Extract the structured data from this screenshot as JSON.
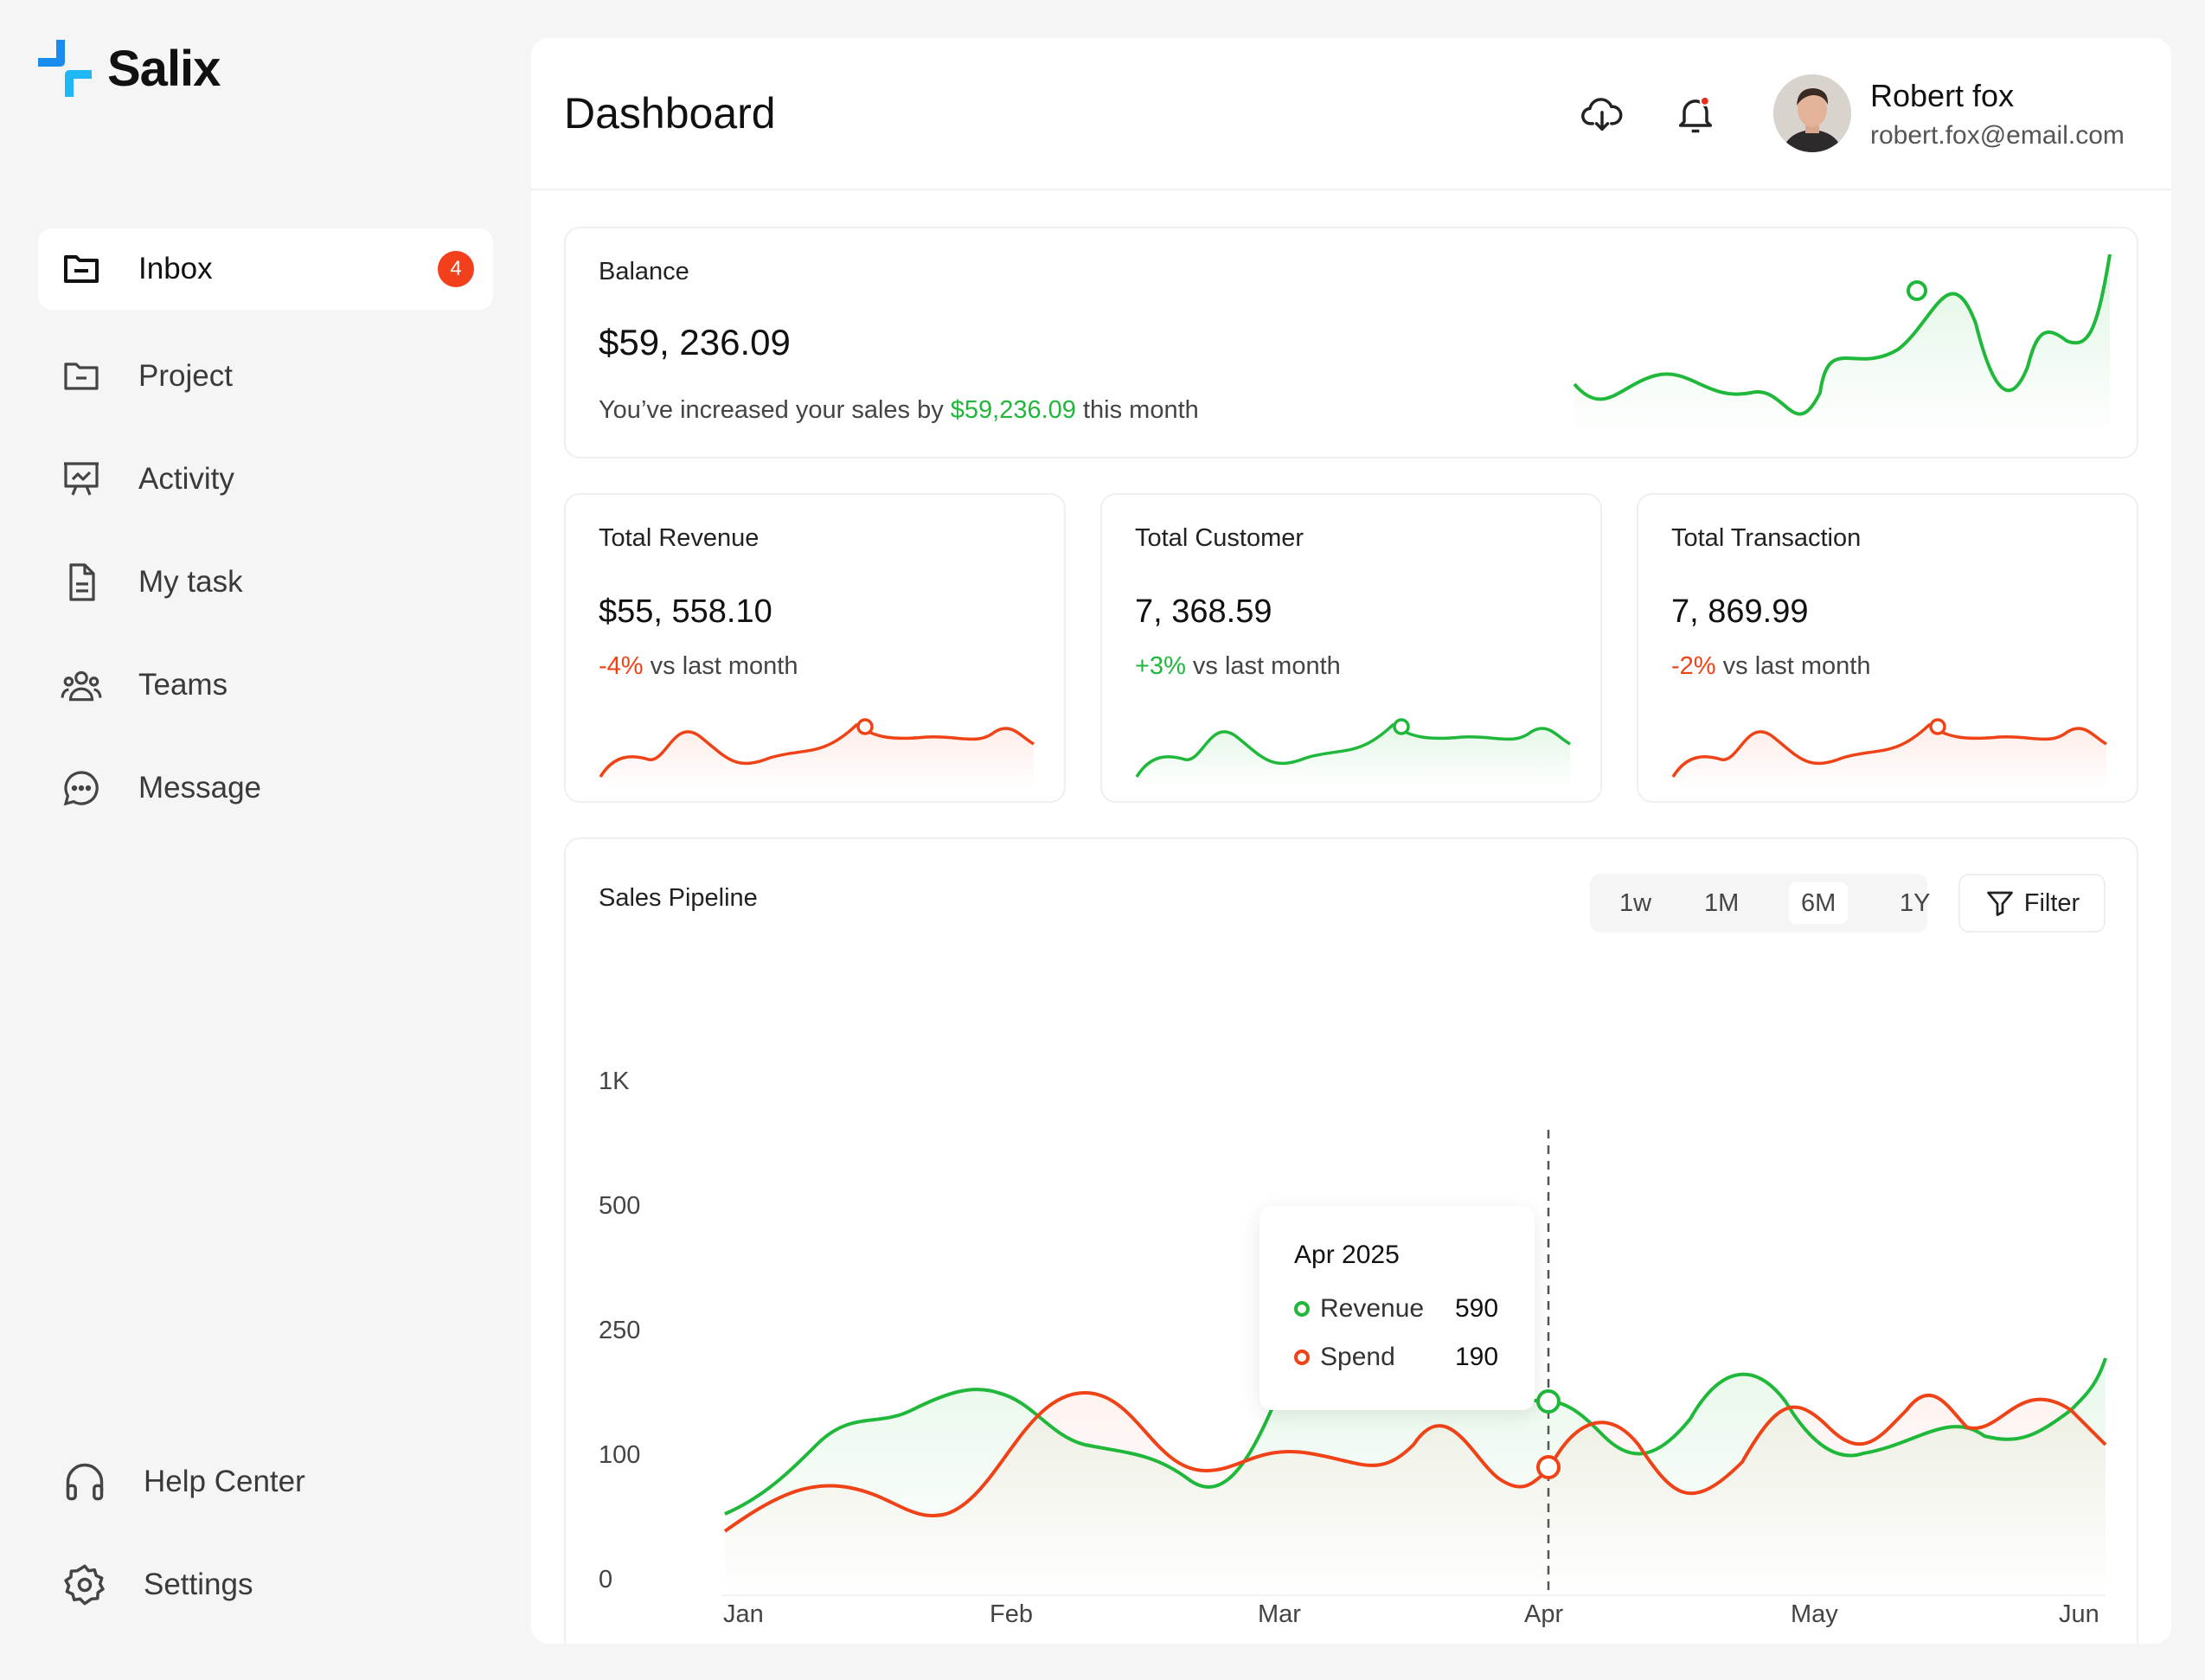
{
  "brand": {
    "name": "Salix",
    "colors": {
      "primary": "#1a8cf0",
      "secondary": "#1fb7f5"
    }
  },
  "sidebar": {
    "items": [
      {
        "label": "Inbox",
        "icon": "folder-icon",
        "badge": "4",
        "active": true
      },
      {
        "label": "Project",
        "icon": "folder-minus-icon"
      },
      {
        "label": "Activity",
        "icon": "presentation-chart-icon"
      },
      {
        "label": "My task",
        "icon": "document-icon"
      },
      {
        "label": "Teams",
        "icon": "users-icon"
      },
      {
        "label": "Message",
        "icon": "chat-bubble-icon"
      }
    ],
    "bottom": [
      {
        "label": "Help Center",
        "icon": "headphones-icon"
      },
      {
        "label": "Settings",
        "icon": "gear-icon"
      }
    ]
  },
  "header": {
    "title": "Dashboard",
    "user": {
      "name": "Robert fox",
      "email": "robert.fox@email.com"
    }
  },
  "balance": {
    "title": "Balance",
    "value": "$59, 236.09",
    "note_prefix": "You’ve increased your sales by ",
    "note_amount": "$59,236.09",
    "note_suffix": " this month"
  },
  "stats": [
    {
      "title": "Total Revenue",
      "value": "$55, 558.10",
      "change": "-4%",
      "change_suffix": " vs last month",
      "trend": "down",
      "color": "#ef4217"
    },
    {
      "title": "Total Customer",
      "value": "7, 368.59",
      "change": "+3%",
      "change_suffix": " vs last month",
      "trend": "up",
      "color": "#1fb83a"
    },
    {
      "title": "Total Transaction",
      "value": "7, 869.99",
      "change": "-2%",
      "change_suffix": " vs last month",
      "trend": "down",
      "color": "#ef4217"
    }
  ],
  "pipeline": {
    "title": "Sales Pipeline",
    "timeframes": [
      "1w",
      "1M",
      "6M",
      "1Y"
    ],
    "selected_timeframe": "6M",
    "filter_label": "Filter",
    "tooltip": {
      "title": "Apr 2025",
      "rows": [
        {
          "label": "Revenue",
          "value": "590"
        },
        {
          "label": "Spend",
          "value": "190"
        }
      ]
    }
  },
  "chart_data": {
    "type": "line",
    "title": "Sales Pipeline",
    "x": [
      "Jan",
      "Feb",
      "Mar",
      "Apr",
      "May",
      "Jun"
    ],
    "y_ticks": [
      "0",
      "100",
      "250",
      "500",
      "1K"
    ],
    "series": [
      {
        "name": "Revenue",
        "color": "#1fb83a"
      },
      {
        "name": "Spend",
        "color": "#ef4217"
      }
    ],
    "highlight": {
      "x": "Apr",
      "Revenue": 590,
      "Spend": 190
    }
  }
}
